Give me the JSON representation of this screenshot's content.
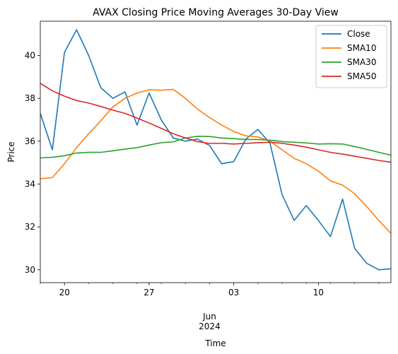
{
  "chart_data": {
    "type": "line",
    "title": "AVAX Closing Price Moving Averages 30-Day View",
    "xlabel": "Time",
    "ylabel": "Price",
    "x_start": "2024-05-18",
    "x_end": "2024-06-16",
    "x": [
      "2024-05-18",
      "2024-05-19",
      "2024-05-20",
      "2024-05-21",
      "2024-05-22",
      "2024-05-23",
      "2024-05-24",
      "2024-05-25",
      "2024-05-26",
      "2024-05-27",
      "2024-05-28",
      "2024-05-29",
      "2024-05-30",
      "2024-05-31",
      "2024-06-01",
      "2024-06-02",
      "2024-06-03",
      "2024-06-04",
      "2024-06-05",
      "2024-06-06",
      "2024-06-07",
      "2024-06-08",
      "2024-06-09",
      "2024-06-10",
      "2024-06-11",
      "2024-06-12",
      "2024-06-13",
      "2024-06-14",
      "2024-06-15",
      "2024-06-16"
    ],
    "ylim": [
      29.4,
      41.6
    ],
    "y_ticks": [
      30,
      32,
      34,
      36,
      38,
      40
    ],
    "x_ticks": [
      {
        "date": "2024-05-20",
        "label": "20"
      },
      {
        "date": "2024-05-27",
        "label": "27"
      },
      {
        "date": "2024-06-03",
        "label": "03"
      },
      {
        "date": "2024-06-10",
        "label": "10"
      }
    ],
    "month_label": "Jun",
    "year_label": "2024",
    "month_label_date": "2024-06-01",
    "grid": false,
    "legend_position": "top-right",
    "series": [
      {
        "name": "Close",
        "color": "#1f77b4",
        "values": [
          37.3,
          35.6,
          40.15,
          41.2,
          40.0,
          38.5,
          38.0,
          38.3,
          36.75,
          38.25,
          37.0,
          36.15,
          36.0,
          36.1,
          35.8,
          34.95,
          35.05,
          36.1,
          36.55,
          35.9,
          33.5,
          32.3,
          33.0,
          32.3,
          31.55,
          33.3,
          31.0,
          30.3,
          30.0,
          30.05
        ]
      },
      {
        "name": "SMA10",
        "color": "#ff7f0e",
        "values": [
          34.25,
          34.3,
          34.95,
          35.7,
          36.35,
          36.95,
          37.6,
          38.0,
          38.25,
          38.4,
          38.38,
          38.42,
          38.0,
          37.5,
          37.1,
          36.75,
          36.45,
          36.25,
          36.2,
          36.0,
          35.6,
          35.2,
          34.95,
          34.6,
          34.15,
          33.95,
          33.55,
          32.95,
          32.3,
          31.7
        ]
      },
      {
        "name": "SMA30",
        "color": "#2ca02c",
        "values": [
          35.22,
          35.25,
          35.32,
          35.45,
          35.48,
          35.48,
          35.55,
          35.63,
          35.7,
          35.82,
          35.93,
          35.97,
          36.15,
          36.23,
          36.22,
          36.15,
          36.12,
          36.08,
          36.08,
          36.05,
          35.98,
          35.95,
          35.92,
          35.87,
          35.88,
          35.87,
          35.75,
          35.62,
          35.48,
          35.35
        ]
      },
      {
        "name": "SMA50",
        "color": "#d62728",
        "values": [
          38.7,
          38.35,
          38.1,
          37.9,
          37.78,
          37.62,
          37.45,
          37.3,
          37.08,
          36.85,
          36.6,
          36.35,
          36.15,
          35.98,
          35.9,
          35.9,
          35.87,
          35.9,
          35.93,
          35.95,
          35.9,
          35.82,
          35.72,
          35.6,
          35.48,
          35.4,
          35.3,
          35.2,
          35.1,
          35.02
        ]
      }
    ]
  }
}
